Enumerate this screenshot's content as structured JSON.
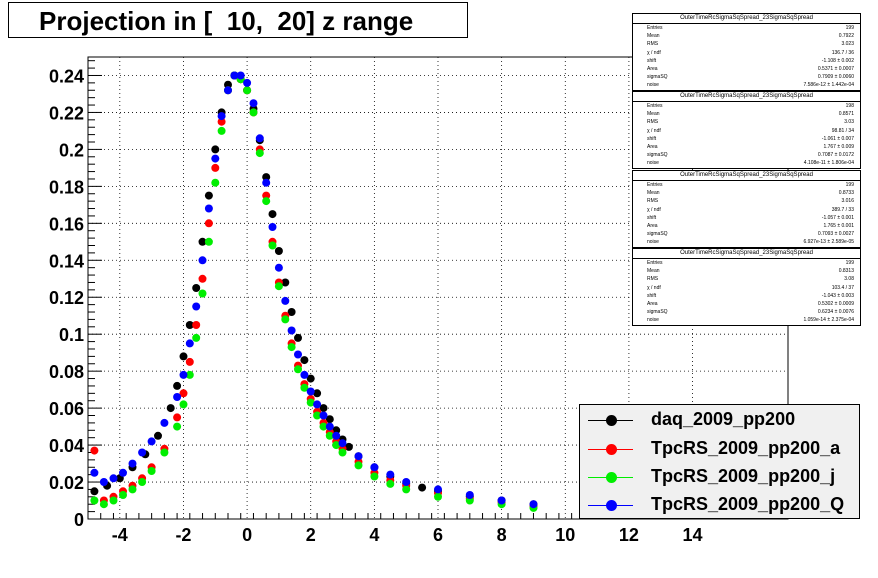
{
  "title": "Projection in [  10,  20] z range",
  "stats_boxes": [
    {
      "header": "OuterTimeRcSigmaSqSpread_23SigmaSqSpread",
      "rows": [
        [
          "Entries",
          "199"
        ],
        [
          "Mean",
          "0.7922"
        ],
        [
          "RMS",
          "3.023"
        ],
        [
          "χ  / ndf",
          "136.7 / 36"
        ],
        [
          "shift",
          "-1.108 ± 0.002"
        ],
        [
          "Area",
          "0.5371 ± 0.0007"
        ],
        [
          "sigmaSQ",
          "0.7909 ± 0.0060"
        ],
        [
          "noise",
          "7.586e-12 ± 1.442e-04"
        ]
      ]
    },
    {
      "header": "OuterTimeRcSigmaSqSpread_23SigmaSqSpread",
      "rows": [
        [
          "Entries",
          "198"
        ],
        [
          "Mean",
          "0.8571"
        ],
        [
          "RMS",
          "3.03"
        ],
        [
          "χ  / ndf",
          "98.81 / 34"
        ],
        [
          "shift",
          "-1.061 ± 0.007"
        ],
        [
          "Area",
          "1.767 ± 0.009"
        ],
        [
          "sigmaSQ",
          "0.7087 ± 0.0172"
        ],
        [
          "noise",
          "4.108e-11 ± 1.806e-04"
        ]
      ]
    },
    {
      "header": "OuterTimeRcSigmaSqSpread_23SigmaSqSpread",
      "rows": [
        [
          "Entries",
          "199"
        ],
        [
          "Mean",
          "0.8733"
        ],
        [
          "RMS",
          "3.016"
        ],
        [
          "χ  / ndf",
          "389.7 / 33"
        ],
        [
          "shift",
          "-1.057 ± 0.001"
        ],
        [
          "Area",
          "1.765 ± 0.001"
        ],
        [
          "sigmaSQ",
          "0.7093 ± 0.0027"
        ],
        [
          "noise",
          "6.927e-13 ± 2.589e-05"
        ]
      ]
    },
    {
      "header": "OuterTimeRcSigmaSqSpread_23SigmaSqSpread",
      "rows": [
        [
          "Entries",
          "199"
        ],
        [
          "Mean",
          "0.8313"
        ],
        [
          "RMS",
          "3.08"
        ],
        [
          "χ  / ndf",
          "103.4 / 37"
        ],
        [
          "shift",
          "-1.043 ± 0.003"
        ],
        [
          "Area",
          "0.5302 ± 0.0009"
        ],
        [
          "sigmaSQ",
          "0.6234 ± 0.0076"
        ],
        [
          "noise",
          "1.059e-14 ± 2.375e-04"
        ]
      ]
    }
  ],
  "legend": [
    {
      "label": "daq_2009_pp200",
      "color": "#000000"
    },
    {
      "label": "TpcRS_2009_pp200_a",
      "color": "#ff0000"
    },
    {
      "label": "TpcRS_2009_pp200_j",
      "color": "#00ee00"
    },
    {
      "label": "TpcRS_2009_pp200_Q",
      "color": "#0000ff"
    }
  ],
  "chart_data": {
    "type": "scatter",
    "title": "Projection in [  10,  20] z range",
    "xlim": [
      -5,
      17
    ],
    "ylim": [
      0,
      0.25
    ],
    "x_ticks": [
      -4,
      -2,
      0,
      2,
      4,
      6,
      8,
      10,
      12,
      14
    ],
    "y_ticks": [
      0,
      0.02,
      0.04,
      0.06,
      0.08,
      0.1,
      0.12,
      0.14,
      0.16,
      0.18,
      0.2,
      0.22,
      0.24
    ],
    "y_tick_labels": [
      "0",
      "0.02",
      "0.04",
      "0.06",
      "0.08",
      "0.1",
      "0.12",
      "0.14",
      "0.16",
      "0.18",
      "0.2",
      "0.22",
      "0.24"
    ],
    "grid": true,
    "legend_position": "bottom-right",
    "series": [
      {
        "name": "daq_2009_pp200",
        "color": "#000000",
        "x": [
          -4.8,
          -4.4,
          -4.0,
          -3.6,
          -3.2,
          -2.8,
          -2.4,
          -2.2,
          -2.0,
          -1.8,
          -1.6,
          -1.4,
          -1.2,
          -1.0,
          -0.8,
          -0.6,
          -0.4,
          -0.2,
          0.0,
          0.2,
          0.4,
          0.6,
          0.8,
          1.0,
          1.2,
          1.4,
          1.6,
          1.8,
          2.0,
          2.2,
          2.4,
          2.6,
          2.8,
          3.0,
          3.2,
          3.5,
          4.0,
          4.5,
          5.0,
          5.5,
          6.0,
          7.0,
          8.0,
          9.0
        ],
        "y": [
          0.015,
          0.018,
          0.022,
          0.028,
          0.035,
          0.045,
          0.06,
          0.072,
          0.088,
          0.105,
          0.125,
          0.15,
          0.175,
          0.2,
          0.22,
          0.235,
          0.24,
          0.238,
          0.232,
          0.222,
          0.205,
          0.185,
          0.165,
          0.145,
          0.128,
          0.112,
          0.098,
          0.086,
          0.076,
          0.068,
          0.06,
          0.054,
          0.048,
          0.043,
          0.039,
          0.034,
          0.028,
          0.023,
          0.019,
          0.017,
          0.015,
          0.012,
          0.01,
          0.008
        ]
      },
      {
        "name": "TpcRS_2009_pp200_a",
        "color": "#ff0000",
        "x": [
          -4.8,
          -4.5,
          -4.2,
          -3.9,
          -3.6,
          -3.3,
          -3.0,
          -2.6,
          -2.2,
          -2.0,
          -1.8,
          -1.6,
          -1.4,
          -1.2,
          -1.0,
          -0.8,
          -0.6,
          -0.4,
          -0.2,
          0.0,
          0.2,
          0.4,
          0.6,
          0.8,
          1.0,
          1.2,
          1.4,
          1.6,
          1.8,
          2.0,
          2.2,
          2.4,
          2.6,
          2.8,
          3.0,
          3.5,
          4.0,
          4.5,
          5.0,
          6.0,
          7.0,
          8.0,
          9.0
        ],
        "y": [
          0.037,
          0.01,
          0.012,
          0.015,
          0.018,
          0.022,
          0.028,
          0.038,
          0.055,
          0.068,
          0.085,
          0.105,
          0.13,
          0.16,
          0.19,
          0.215,
          0.232,
          0.24,
          0.238,
          0.232,
          0.22,
          0.2,
          0.175,
          0.15,
          0.128,
          0.11,
          0.095,
          0.083,
          0.073,
          0.065,
          0.058,
          0.052,
          0.047,
          0.042,
          0.038,
          0.031,
          0.025,
          0.021,
          0.018,
          0.014,
          0.011,
          0.009,
          0.007
        ]
      },
      {
        "name": "TpcRS_2009_pp200_j",
        "color": "#00ee00",
        "x": [
          -4.8,
          -4.5,
          -4.2,
          -3.9,
          -3.6,
          -3.3,
          -3.0,
          -2.6,
          -2.2,
          -2.0,
          -1.8,
          -1.6,
          -1.4,
          -1.2,
          -1.0,
          -0.8,
          -0.6,
          -0.4,
          -0.2,
          0.0,
          0.2,
          0.4,
          0.6,
          0.8,
          1.0,
          1.2,
          1.4,
          1.6,
          1.8,
          2.0,
          2.2,
          2.4,
          2.6,
          2.8,
          3.0,
          3.5,
          4.0,
          4.5,
          5.0,
          6.0,
          7.0,
          8.0,
          9.0
        ],
        "y": [
          0.01,
          0.008,
          0.01,
          0.013,
          0.016,
          0.02,
          0.026,
          0.036,
          0.05,
          0.062,
          0.078,
          0.098,
          0.122,
          0.15,
          0.182,
          0.21,
          0.232,
          0.24,
          0.238,
          0.232,
          0.22,
          0.198,
          0.172,
          0.148,
          0.126,
          0.108,
          0.093,
          0.081,
          0.071,
          0.063,
          0.056,
          0.05,
          0.045,
          0.04,
          0.036,
          0.029,
          0.023,
          0.019,
          0.016,
          0.012,
          0.01,
          0.008,
          0.006
        ]
      },
      {
        "name": "TpcRS_2009_pp200_Q",
        "color": "#0000ff",
        "x": [
          -4.8,
          -4.5,
          -4.2,
          -3.9,
          -3.6,
          -3.3,
          -3.0,
          -2.6,
          -2.2,
          -2.0,
          -1.8,
          -1.6,
          -1.4,
          -1.2,
          -1.0,
          -0.8,
          -0.6,
          -0.4,
          -0.2,
          0.0,
          0.2,
          0.4,
          0.6,
          0.8,
          1.0,
          1.2,
          1.4,
          1.6,
          1.8,
          2.0,
          2.2,
          2.4,
          2.6,
          2.8,
          3.0,
          3.5,
          4.0,
          4.5,
          5.0,
          6.0,
          7.0,
          8.0,
          9.0
        ],
        "y": [
          0.025,
          0.02,
          0.022,
          0.025,
          0.03,
          0.036,
          0.042,
          0.052,
          0.066,
          0.078,
          0.095,
          0.115,
          0.14,
          0.168,
          0.195,
          0.218,
          0.232,
          0.24,
          0.24,
          0.236,
          0.225,
          0.206,
          0.182,
          0.158,
          0.136,
          0.118,
          0.102,
          0.089,
          0.078,
          0.069,
          0.062,
          0.056,
          0.05,
          0.045,
          0.041,
          0.034,
          0.028,
          0.024,
          0.02,
          0.016,
          0.013,
          0.01,
          0.008
        ]
      }
    ]
  }
}
